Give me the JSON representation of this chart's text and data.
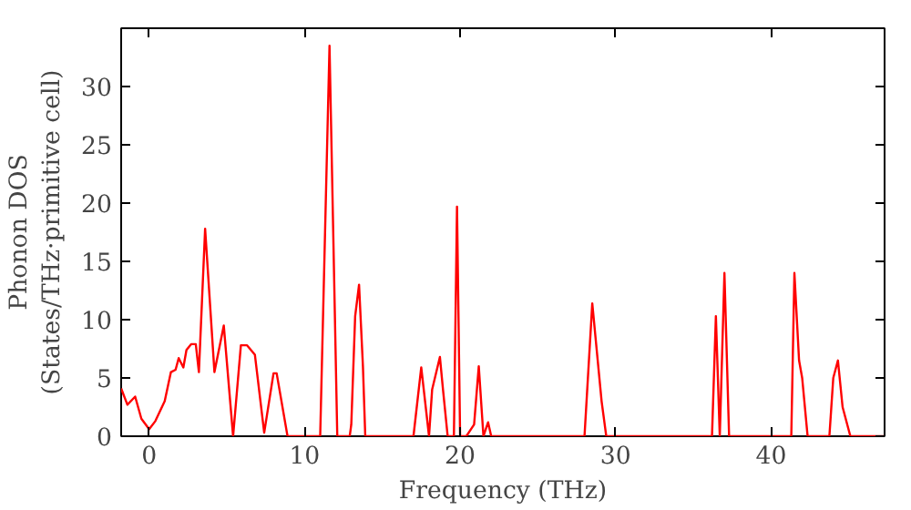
{
  "chart_data": {
    "type": "line",
    "xlabel": "Frequency (THz)",
    "ylabel": "Phonon DOS\n(States/THz·primitive cell)",
    "xlim": [
      -1.8,
      47.3
    ],
    "ylim": [
      0,
      35
    ],
    "xticks": [
      0,
      10,
      20,
      30,
      40
    ],
    "yticks": [
      0,
      5,
      10,
      15,
      20,
      25,
      30
    ],
    "grid": false,
    "line_style": "solid",
    "series": [
      {
        "color": "#ff0000",
        "x": [
          -1.8,
          -1.4,
          -0.9,
          -0.5,
          0,
          0.4,
          1.0,
          1.4,
          1.7,
          1.9,
          2.2,
          2.4,
          2.7,
          3.0,
          3.2,
          3.6,
          4.2,
          4.8,
          5.4,
          5.9,
          6.3,
          6.8,
          7.4,
          8.0,
          8.2,
          8.9,
          11.0,
          11.6,
          12.1,
          12.9,
          13.0,
          13.25,
          13.5,
          13.75,
          13.9,
          17.0,
          17.5,
          18.0,
          18.2,
          18.7,
          18.9,
          19.2,
          19.6,
          19.8,
          20.0,
          20.4,
          20.9,
          21.2,
          21.5,
          21.8,
          22.0,
          28.0,
          28.5,
          29.1,
          29.4,
          36.2,
          36.45,
          36.7,
          37.0,
          37.3,
          41.3,
          41.5,
          41.8,
          42.0,
          42.35,
          43.75,
          44.0,
          44.3,
          44.6,
          45.1,
          47.3
        ],
        "values": [
          4.1,
          2.7,
          3.4,
          1.5,
          0.6,
          1.3,
          3.0,
          5.5,
          5.7,
          6.7,
          5.9,
          7.4,
          7.9,
          7.9,
          5.5,
          17.8,
          5.5,
          9.5,
          0,
          7.8,
          7.8,
          7.0,
          0.3,
          5.4,
          5.4,
          0,
          0,
          33.5,
          0,
          0,
          1.0,
          10.3,
          13.0,
          6.0,
          0,
          0,
          5.9,
          0,
          4.0,
          6.8,
          4.0,
          0,
          0,
          19.7,
          0,
          0,
          1.0,
          6.0,
          0,
          1.2,
          0,
          0,
          11.4,
          3.0,
          0,
          0,
          10.3,
          0,
          14.0,
          0,
          0,
          14.0,
          6.5,
          5.0,
          0,
          0,
          5.0,
          6.5,
          2.5,
          0,
          0
        ]
      }
    ]
  }
}
